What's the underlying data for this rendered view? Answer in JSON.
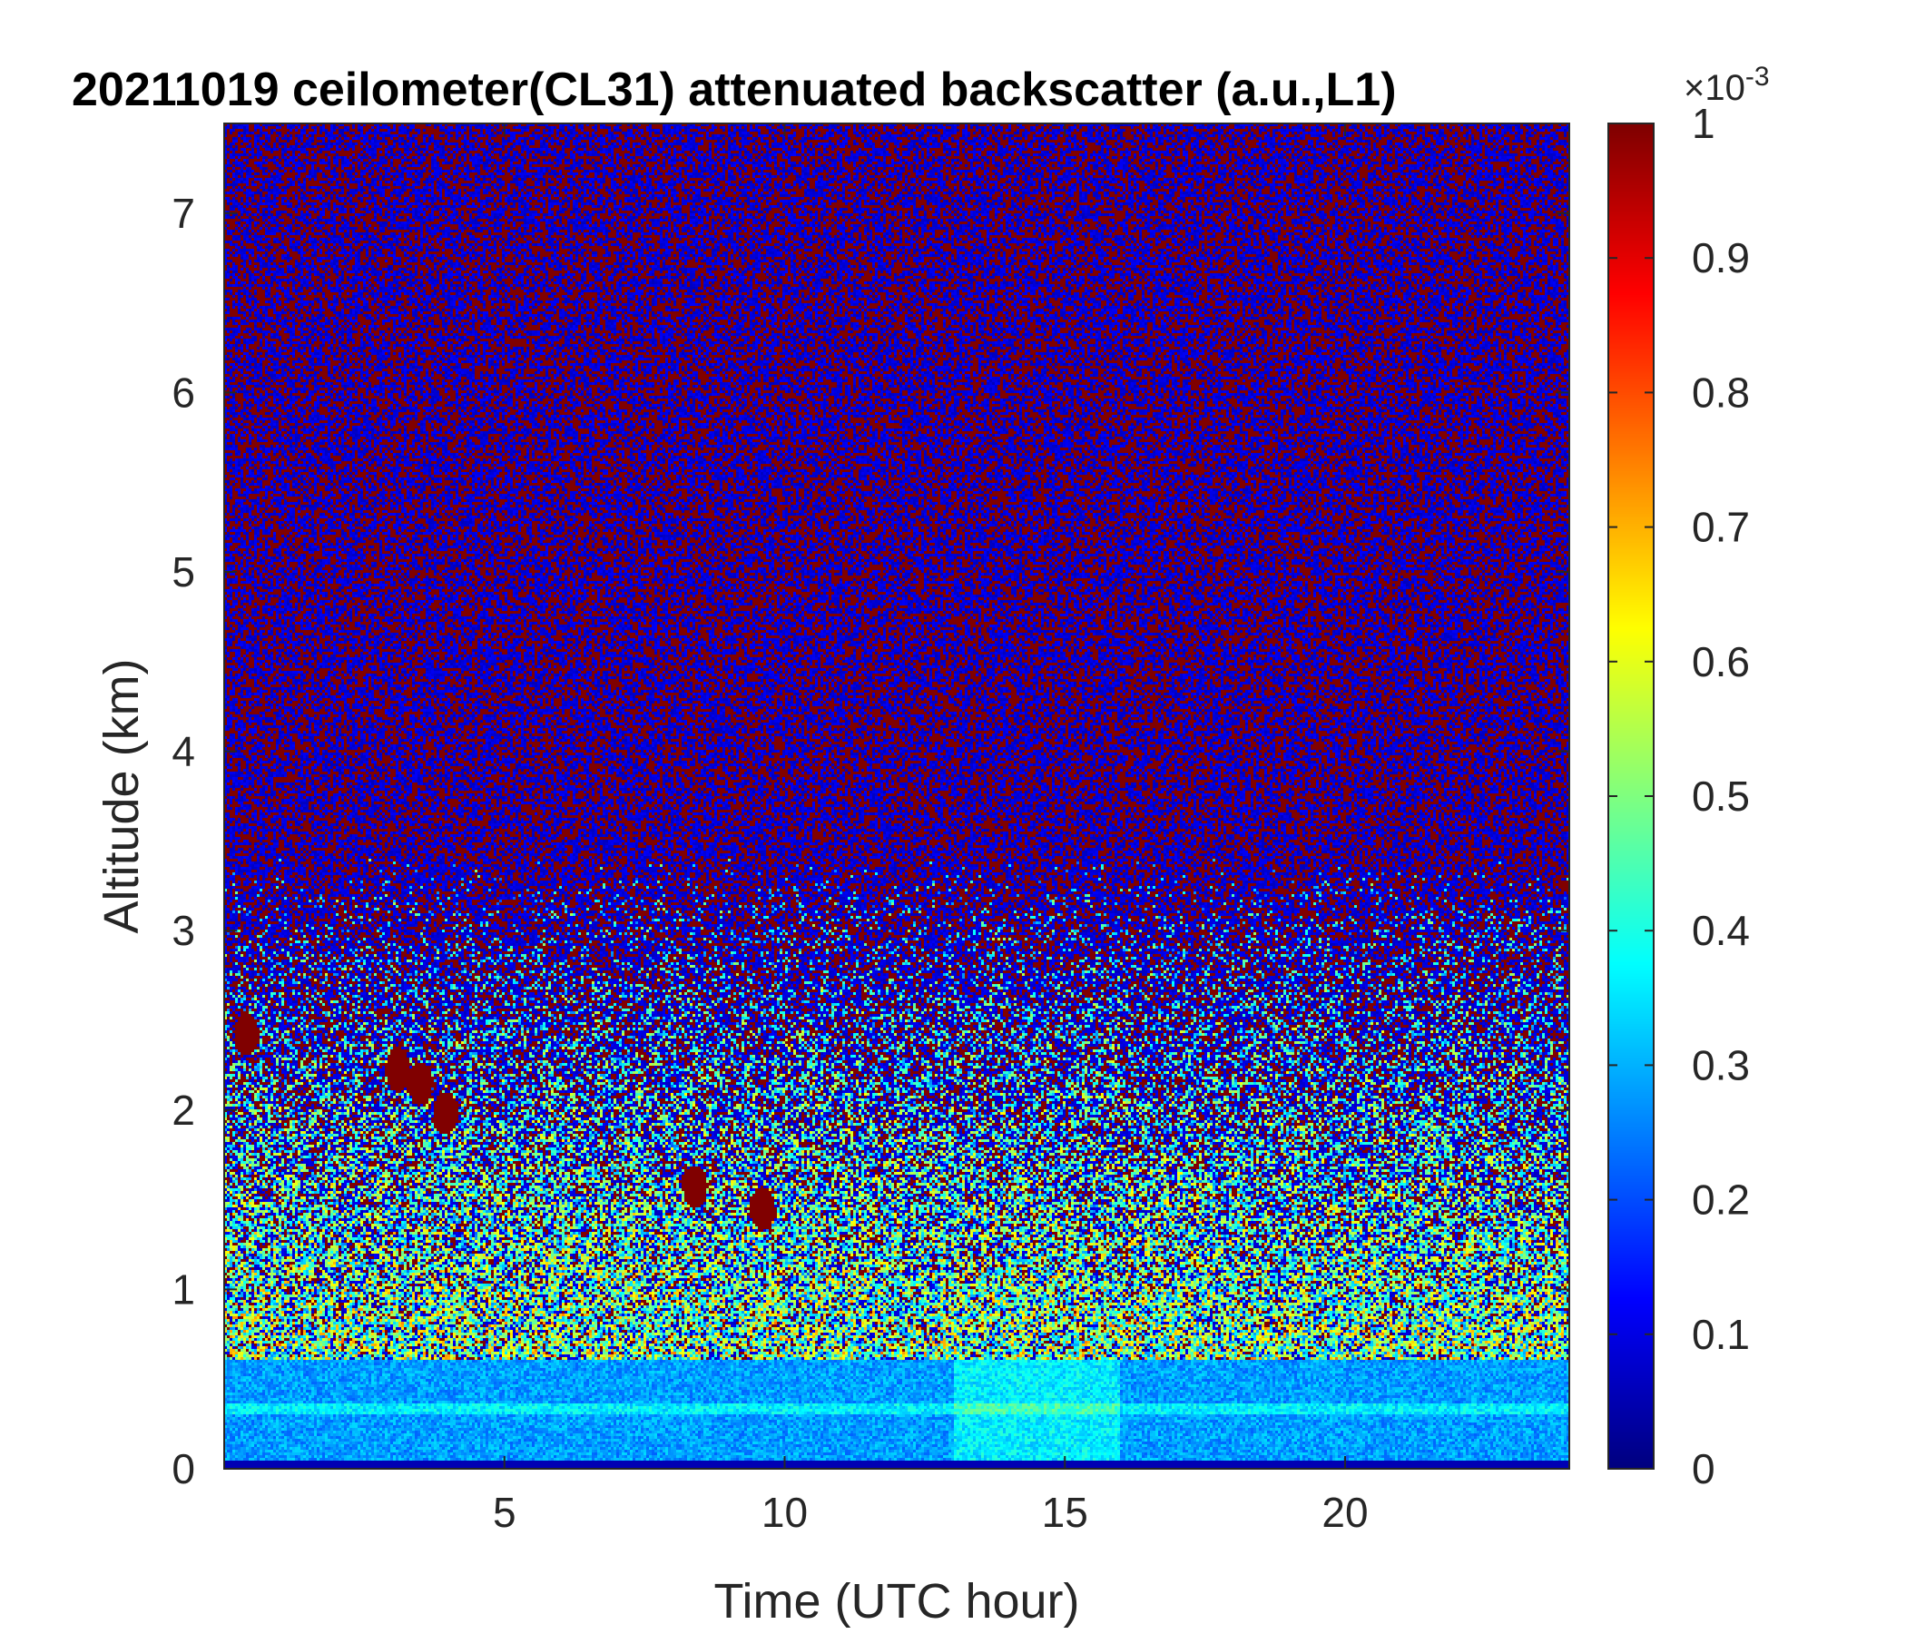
{
  "chart_data": {
    "type": "heatmap",
    "title": "20211019 ceilometer(CL31) attenuated backscatter (a.u.,L1)",
    "xlabel": "Time (UTC hour)",
    "ylabel": "Altitude (km)",
    "xlim": [
      0,
      24
    ],
    "ylim": [
      0,
      7.5
    ],
    "x_ticks": [
      5,
      10,
      15,
      20
    ],
    "x_tick_labels": [
      "5",
      "10",
      "15",
      "20"
    ],
    "y_ticks": [
      0,
      1,
      2,
      3,
      4,
      5,
      6,
      7
    ],
    "y_tick_labels": [
      "0",
      "1",
      "2",
      "3",
      "4",
      "5",
      "6",
      "7"
    ],
    "colorbar": {
      "colormap": "jet",
      "clim": [
        0,
        1
      ],
      "ticks": [
        0,
        0.1,
        0.2,
        0.3,
        0.4,
        0.5,
        0.6,
        0.7,
        0.8,
        0.9,
        1
      ],
      "tick_labels": [
        "0",
        "0.1",
        "0.2",
        "0.3",
        "0.4",
        "0.5",
        "0.6",
        "0.7",
        "0.8",
        "0.9",
        "1"
      ],
      "exponent_base": "×10",
      "exponent": "-3"
    },
    "description_of_field": {
      "low_altitude_band": {
        "altitude_km": [
          0,
          0.6
        ],
        "value": 0.3
      },
      "noisy_background_above_3km": {
        "dominant_values": [
          0.05,
          1.0
        ]
      }
    },
    "cloud_patches": [
      {
        "time_h": 0.4,
        "altitude_km": 2.42,
        "value": 1.0
      },
      {
        "time_h": 3.1,
        "altitude_km": 2.22,
        "value": 1.0
      },
      {
        "time_h": 3.5,
        "altitude_km": 2.15,
        "value": 1.0
      },
      {
        "time_h": 3.95,
        "altitude_km": 1.98,
        "value": 1.0
      },
      {
        "time_h": 8.4,
        "altitude_km": 1.57,
        "value": 1.0
      },
      {
        "time_h": 9.6,
        "altitude_km": 1.45,
        "value": 1.0
      }
    ]
  }
}
